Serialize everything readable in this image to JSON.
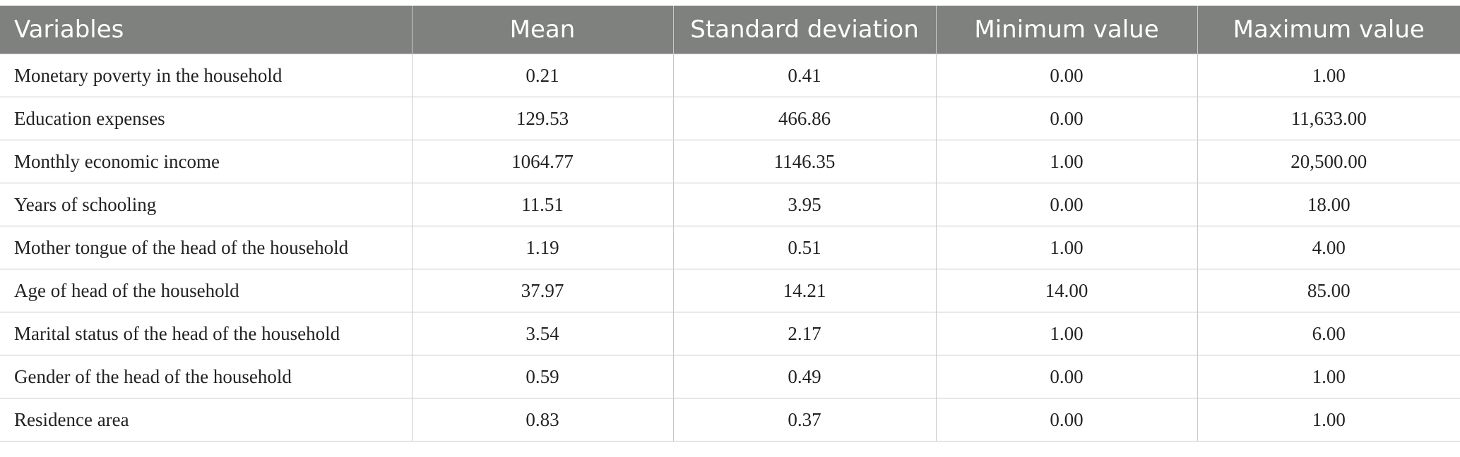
{
  "table": {
    "header": [
      "Variables",
      "Mean",
      "Standard deviation",
      "Minimum value",
      "Maximum value"
    ],
    "rows": [
      [
        "Monetary poverty in the household",
        "0.21",
        "0.41",
        "0.00",
        "1.00"
      ],
      [
        "Education expenses",
        "129.53",
        "466.86",
        "0.00",
        "11,633.00"
      ],
      [
        "Monthly economic income",
        "1064.77",
        "1146.35",
        "1.00",
        "20,500.00"
      ],
      [
        "Years of schooling",
        "11.51",
        "3.95",
        "0.00",
        "18.00"
      ],
      [
        "Mother tongue of the head of the household",
        "1.19",
        "0.51",
        "1.00",
        "4.00"
      ],
      [
        "Age of head of the household",
        "37.97",
        "14.21",
        "14.00",
        "85.00"
      ],
      [
        "Marital status of the head of the household",
        "3.54",
        "2.17",
        "1.00",
        "6.00"
      ],
      [
        "Gender of the head of the household",
        "0.59",
        "0.49",
        "0.00",
        "1.00"
      ],
      [
        "Residence area",
        "0.83",
        "0.37",
        "0.00",
        "1.00"
      ]
    ]
  }
}
